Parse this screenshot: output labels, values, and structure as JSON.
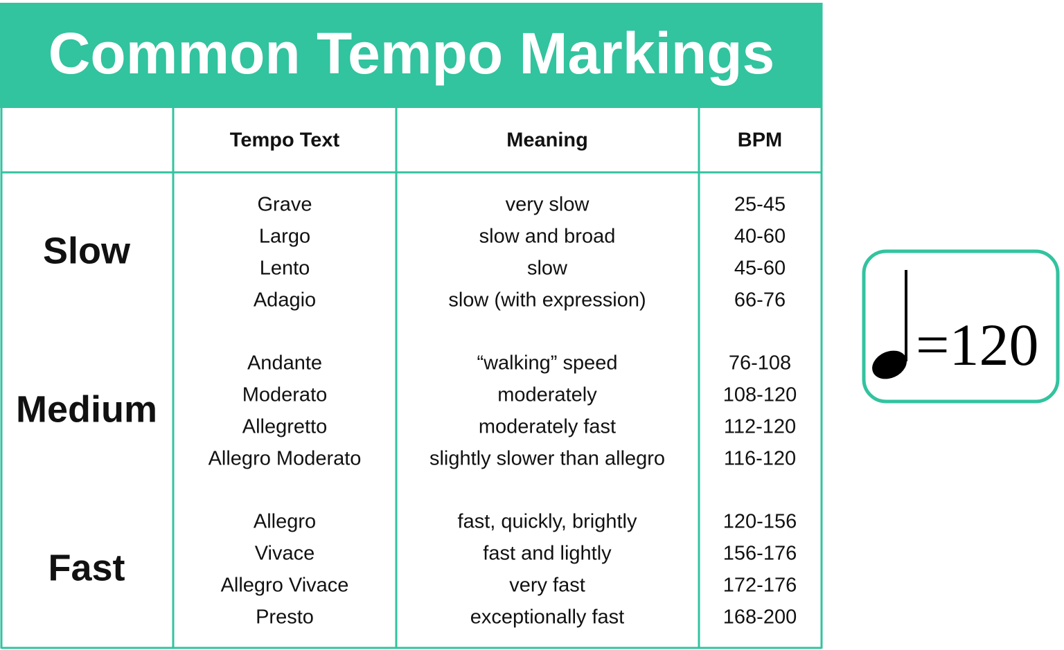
{
  "header": {
    "title": "Common Tempo Markings"
  },
  "table": {
    "columns": [
      "Tempo Text",
      "Meaning",
      "BPM"
    ],
    "groups": [
      {
        "label": "Slow",
        "rows": [
          [
            "Grave",
            "very slow",
            "25-45"
          ],
          [
            "Largo",
            "slow and broad",
            "40-60"
          ],
          [
            "Lento",
            "slow",
            "45-60"
          ],
          [
            "Adagio",
            "slow (with expression)",
            "66-76"
          ]
        ]
      },
      {
        "label": "Medium",
        "rows": [
          [
            "Andante",
            "“walking” speed",
            "76-108"
          ],
          [
            "Moderato",
            "moderately",
            "108-120"
          ],
          [
            "Allegretto",
            "moderately fast",
            "112-120"
          ],
          [
            "Allegro Moderato",
            "slightly slower than allegro",
            "116-120"
          ]
        ]
      },
      {
        "label": "Fast",
        "rows": [
          [
            "Allegro",
            "fast, quickly, brightly",
            "120-156"
          ],
          [
            "Vivace",
            "fast and lightly",
            "156-176"
          ],
          [
            "Allegro Vivace",
            "very fast",
            "172-176"
          ],
          [
            "Presto",
            "exceptionally fast",
            "168-200"
          ]
        ]
      }
    ]
  },
  "note": {
    "text": "=120"
  }
}
